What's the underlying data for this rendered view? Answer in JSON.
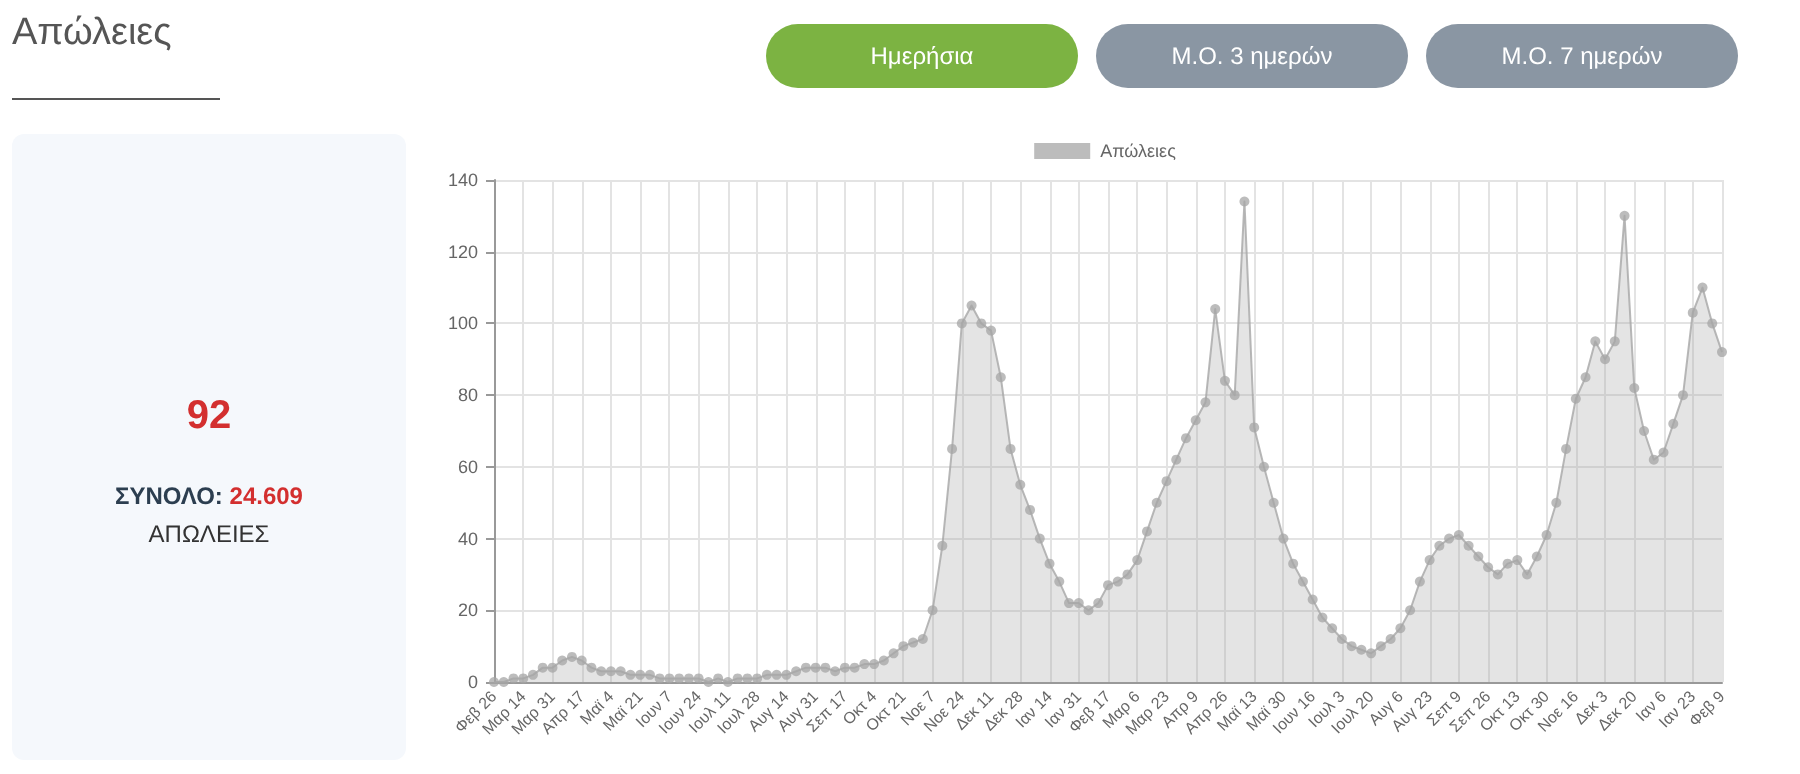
{
  "chart_data": {
    "type": "area",
    "title": "Απώλειες",
    "annotations": [
      "Ημερήσια",
      "Μ.Ο. 3 ημερών",
      "Μ.Ο. 7 ημερών",
      "92",
      "ΣΥΝΟΛΟ:",
      "24.609",
      "ΑΠΩΛΕΙΕΣ"
    ],
    "categories": [
      "Φεβ 26",
      null,
      null,
      "Μαρ 14",
      null,
      null,
      "Μαρ 31",
      null,
      null,
      "Απρ 17",
      null,
      null,
      "Μαϊ 4",
      null,
      null,
      "Μαϊ 21",
      null,
      null,
      "Ιουν 7",
      null,
      null,
      "Ιουν 24",
      null,
      null,
      "Ιουλ 11",
      null,
      null,
      "Ιουλ 28",
      null,
      null,
      "Αυγ 14",
      null,
      null,
      "Αυγ 31",
      null,
      null,
      "Σεπ 17",
      null,
      null,
      "Οκτ 4",
      null,
      null,
      "Οκτ 21",
      null,
      null,
      "Νοε 7",
      null,
      null,
      "Νοε 24",
      null,
      null,
      "Δεκ 11",
      null,
      null,
      "Δεκ 28",
      null,
      null,
      "Ιαν 14",
      null,
      null,
      "Ιαν 31",
      null,
      null,
      "Φεβ 17",
      null,
      null,
      "Μαρ 6",
      null,
      null,
      "Μαρ 23",
      null,
      null,
      "Απρ 9",
      null,
      null,
      "Απρ 26",
      null,
      null,
      "Μαϊ 13",
      null,
      null,
      "Μαϊ 30",
      null,
      null,
      "Ιουν 16",
      null,
      null,
      "Ιουλ 3",
      null,
      null,
      "Ιουλ 20",
      null,
      null,
      "Αυγ 6",
      null,
      null,
      "Αυγ 23",
      null,
      null,
      "Σεπ 9",
      null,
      null,
      "Σεπ 26",
      null,
      null,
      "Οκτ 13",
      null,
      null,
      "Οκτ 30",
      null,
      null,
      "Νοε 16",
      null,
      null,
      "Δεκ 3",
      null,
      null,
      "Δεκ 20",
      null,
      null,
      "Ιαν 6",
      null,
      null,
      "Ιαν 23",
      null,
      null,
      "Φεβ 9"
    ],
    "series": [
      {
        "name": "Απώλειες",
        "color": "#a6a6a6",
        "values": [
          0,
          0,
          1,
          1,
          2,
          4,
          4,
          6,
          7,
          6,
          4,
          3,
          3,
          3,
          2,
          2,
          2,
          1,
          1,
          1,
          1,
          1,
          0,
          1,
          0,
          1,
          1,
          1,
          2,
          2,
          2,
          3,
          4,
          4,
          4,
          3,
          4,
          4,
          5,
          5,
          6,
          8,
          10,
          11,
          12,
          20,
          38,
          65,
          100,
          105,
          100,
          98,
          85,
          65,
          55,
          48,
          40,
          33,
          28,
          22,
          22,
          20,
          22,
          27,
          28,
          30,
          34,
          42,
          50,
          56,
          62,
          68,
          73,
          78,
          104,
          84,
          80,
          134,
          71,
          60,
          50,
          40,
          33,
          28,
          23,
          18,
          15,
          12,
          10,
          9,
          8,
          10,
          12,
          15,
          20,
          28,
          34,
          38,
          40,
          41,
          38,
          35,
          32,
          30,
          33,
          34,
          30,
          35,
          41,
          50,
          65,
          79,
          85,
          95,
          90,
          95,
          130,
          82,
          70,
          62,
          64,
          72,
          80,
          103,
          110,
          100,
          92
        ]
      }
    ],
    "ylim": [
      0,
      140
    ],
    "yticks": [
      0,
      20,
      40,
      60,
      80,
      100,
      120,
      140
    ],
    "grid": true,
    "legend": "top",
    "marker": "circle",
    "line_style": "solid"
  }
}
